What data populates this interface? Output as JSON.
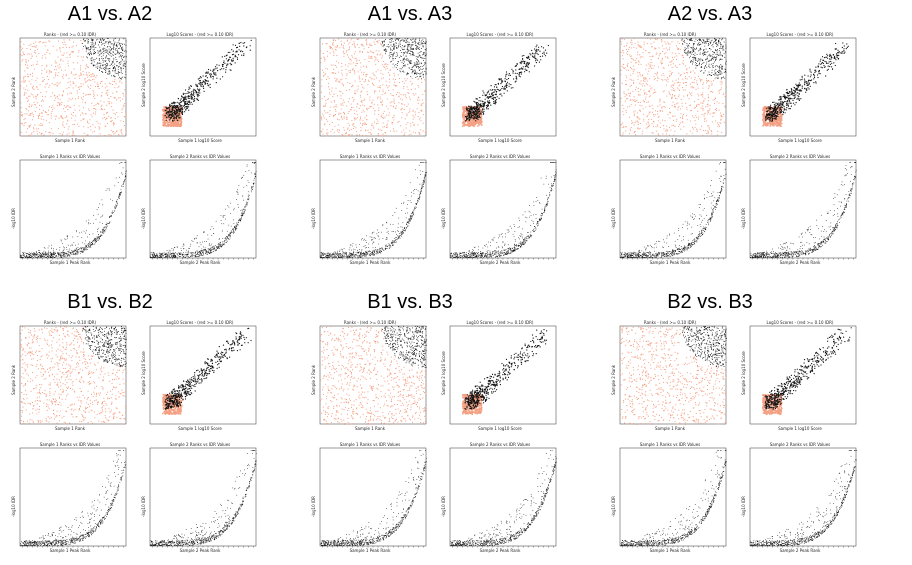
{
  "groups": [
    {
      "title": "A1 vs. A2",
      "col": 0,
      "row": 0
    },
    {
      "title": "A1 vs. A3",
      "col": 1,
      "row": 0
    },
    {
      "title": "A2 vs. A3",
      "col": 2,
      "row": 0
    },
    {
      "title": "B1 vs. B2",
      "col": 0,
      "row": 1
    },
    {
      "title": "B1 vs. B3",
      "col": 1,
      "row": 1
    },
    {
      "title": "B2 vs. B3",
      "col": 2,
      "row": 1
    }
  ],
  "panel_titles": {
    "ranks": "Ranks - (red >= 0.10 IDR)",
    "scores": "Log10 Scores - (red >= 0.10 IDR)",
    "s1": "Sample 1 Ranks vs IDR Values",
    "s2": "Sample 2 Ranks vs IDR Values"
  },
  "axis_labels": {
    "ranks_x": "Sample 1 Rank",
    "ranks_y": "Sample 2 Rank",
    "scores_x": "Sample 1 log10 Score",
    "scores_y": "Sample 2 log10 Score",
    "s1_x": "Sample 1 Peak Rank",
    "s2_x": "Sample 2 Peak Rank",
    "idr_y": "-log10 IDR"
  },
  "colors": {
    "red": "#f4a083",
    "black": "#111111"
  },
  "chart_data": [
    {
      "type": "scatter",
      "title": "Ranks - (red >= 0.10 IDR)",
      "xlim": [
        0,
        1
      ],
      "ylim": [
        0,
        1
      ],
      "x_ticks": [
        "0.0",
        "0.2",
        "0.4",
        "0.6",
        "0.8",
        "1.0"
      ],
      "y_ticks": [
        "0.0",
        "0.2",
        "0.4",
        "0.6",
        "0.8",
        "1.0"
      ]
    },
    {
      "type": "scatter",
      "title": "Log10 Scores - (red >= 0.10 IDR)",
      "x_ticks": [
        "0.50",
        "0.75",
        "1.00",
        "1.25",
        "1.50",
        "1.75",
        "2.00",
        "2.25",
        "2.50"
      ],
      "y_ticks": [
        "0.75",
        "1.00",
        "1.25",
        "1.50",
        "1.75",
        "2.00",
        "2.25",
        "2.50"
      ]
    },
    {
      "type": "scatter",
      "title": "Sample 1 Ranks vs IDR Values",
      "x_ticks": [
        "1",
        "2",
        "3",
        "4",
        "5",
        "6",
        "7",
        "8",
        "9",
        "10",
        "11",
        "12",
        "13",
        "14",
        "15",
        "16",
        "17",
        "18",
        "19",
        "20",
        "21"
      ],
      "y_ticks": [
        "0",
        "1",
        "2",
        "3",
        "4",
        "5",
        "6"
      ]
    },
    {
      "type": "scatter",
      "title": "Sample 2 Ranks vs IDR Values",
      "x_ticks": [
        "1",
        "2",
        "3",
        "4",
        "5",
        "6",
        "7",
        "8",
        "9",
        "10",
        "11",
        "12",
        "13",
        "14",
        "15",
        "16",
        "17",
        "18",
        "19",
        "20",
        "21"
      ],
      "y_ticks": [
        "0",
        "1",
        "2",
        "3",
        "4",
        "5",
        "6"
      ]
    }
  ]
}
